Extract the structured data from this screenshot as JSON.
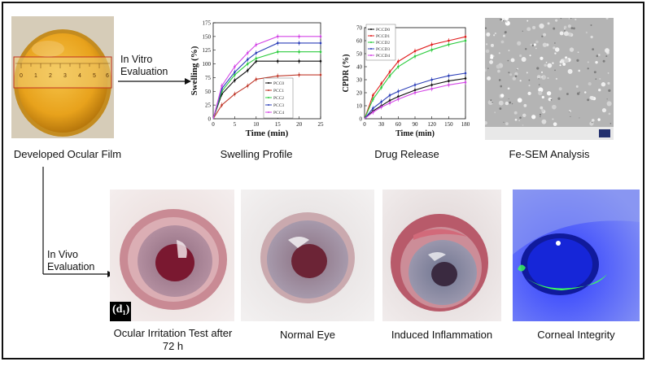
{
  "flow": {
    "in_vitro_label": "In Vitro Evaluation",
    "in_vivo_label": "In Vivo Evaluation"
  },
  "captions": {
    "film": "Developed Ocular Film",
    "swelling": "Swelling Profile",
    "release": "Drug Release",
    "sem": "Fe-SEM Analysis",
    "irritation": "Ocular Irritation Test after 72 h",
    "normal": "Normal Eye",
    "inflammation": "Induced Inflammation",
    "corneal": "Corneal Integrity"
  },
  "panel_label": "(d₁)",
  "ruler_numbers": [
    "0",
    "1",
    "2",
    "3",
    "4",
    "5",
    "6"
  ],
  "colors": {
    "film": "#e8a21c",
    "fluorescein_green": "#3cff5a",
    "cobalt_blue": "#1f3cff",
    "arrow": "#111111"
  },
  "chart_data": [
    {
      "type": "line",
      "xlabel": "Time (min)",
      "ylabel": "Swelling (%)",
      "x": [
        0,
        2,
        5,
        8,
        10,
        15,
        20,
        25
      ],
      "xticks": [
        "0",
        "5",
        "10",
        "15",
        "20",
        "25"
      ],
      "yticks": [
        "0",
        "25",
        "50",
        "75",
        "100",
        "125",
        "150",
        "175"
      ],
      "xlim": [
        0,
        25
      ],
      "ylim": [
        0,
        175
      ],
      "legend_position": "bottom-right",
      "series": [
        {
          "name": "PCC0",
          "color": "#111111",
          "values": [
            0,
            45,
            70,
            88,
            105,
            105,
            105,
            105
          ]
        },
        {
          "name": "PCC1",
          "color": "#c0392b",
          "values": [
            0,
            25,
            45,
            60,
            72,
            78,
            80,
            80
          ]
        },
        {
          "name": "PCC2",
          "color": "#2ecc40",
          "values": [
            0,
            50,
            80,
            100,
            110,
            122,
            122,
            122
          ]
        },
        {
          "name": "PCC3",
          "color": "#2c3fb8",
          "values": [
            0,
            55,
            85,
            108,
            120,
            138,
            138,
            138
          ]
        },
        {
          "name": "PCC4",
          "color": "#d447e6",
          "values": [
            0,
            60,
            95,
            120,
            135,
            150,
            150,
            150
          ]
        }
      ]
    },
    {
      "type": "line",
      "xlabel": "Time (min)",
      "ylabel": "CPDR (%)",
      "x": [
        0,
        15,
        30,
        45,
        60,
        90,
        120,
        150,
        180
      ],
      "xticks": [
        "0",
        "30",
        "60",
        "90",
        "120",
        "150",
        "180"
      ],
      "yticks": [
        "0",
        "10",
        "20",
        "30",
        "40",
        "50",
        "60",
        "70"
      ],
      "xlim": [
        0,
        180
      ],
      "ylim": [
        0,
        70
      ],
      "legend_position": "top-left",
      "series": [
        {
          "name": "PCCD0",
          "color": "#111111",
          "values": [
            0,
            6,
            10,
            14,
            17,
            22,
            26,
            29,
            31
          ]
        },
        {
          "name": "PCCD1",
          "color": "#e02020",
          "values": [
            0,
            18,
            27,
            36,
            44,
            52,
            57,
            60,
            63
          ]
        },
        {
          "name": "PCCD2",
          "color": "#2ecc40",
          "values": [
            0,
            15,
            24,
            33,
            40,
            48,
            53,
            57,
            60
          ]
        },
        {
          "name": "PCCD3",
          "color": "#2c3fb8",
          "values": [
            0,
            8,
            13,
            18,
            21,
            26,
            30,
            33,
            35
          ]
        },
        {
          "name": "PCCD4",
          "color": "#d447e6",
          "values": [
            0,
            5,
            9,
            12,
            15,
            20,
            23,
            26,
            28
          ]
        }
      ]
    }
  ]
}
